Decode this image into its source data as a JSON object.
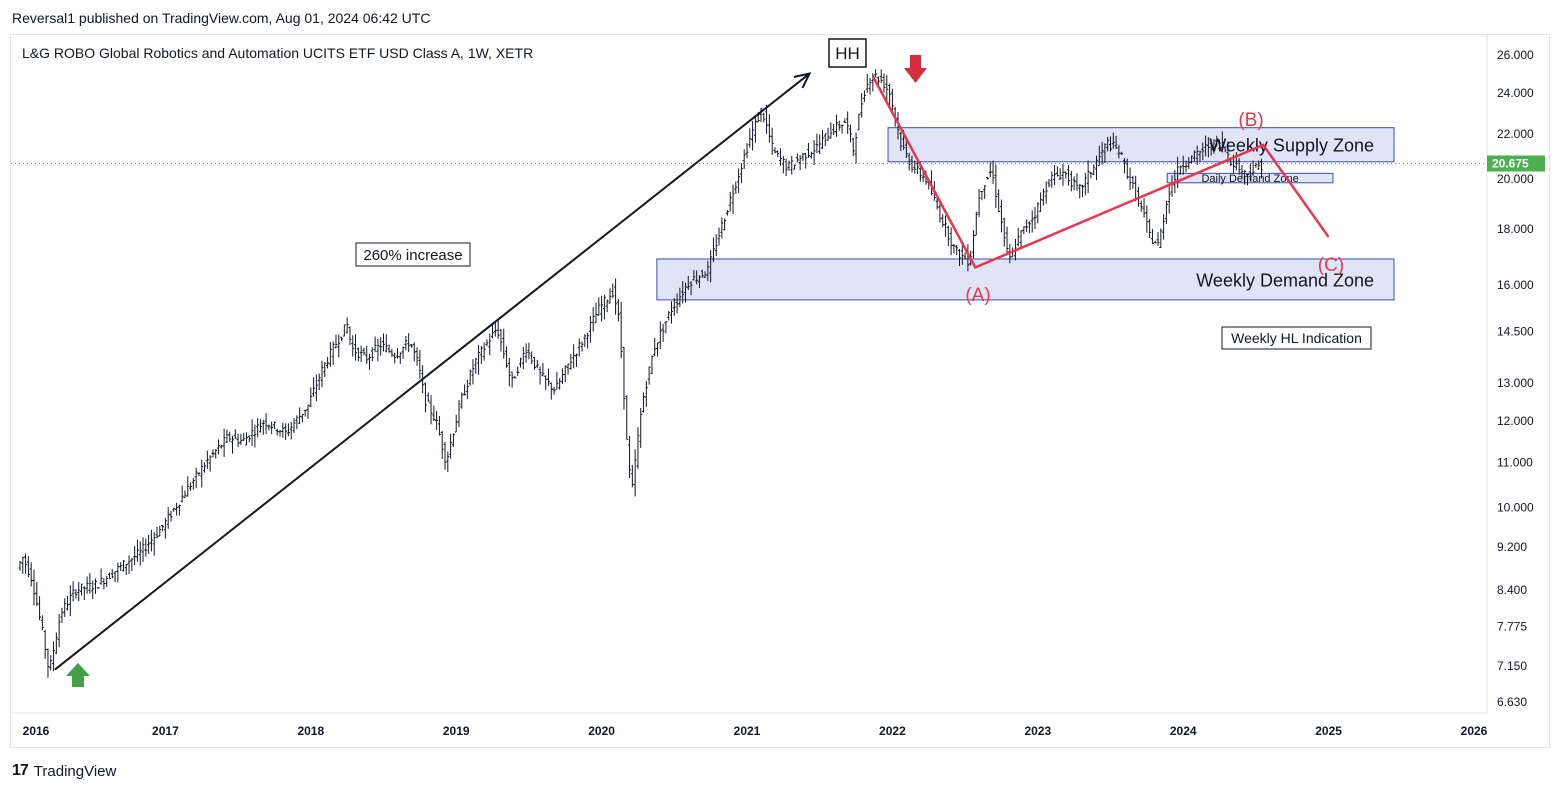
{
  "header": {
    "published": "Reversal1 published on TradingView.com, Aug 01, 2024 06:42 UTC"
  },
  "footer": {
    "brand_mark": "17",
    "brand": "TradingView"
  },
  "chart_data": {
    "type": "candlestick",
    "title": "L&G ROBO Global Robotics and Automation UCITS ETF USD Class A, 1W, XETR",
    "x_ticks": [
      "2016",
      "2017",
      "2018",
      "2019",
      "2020",
      "2021",
      "2022",
      "2023",
      "2024",
      "2025",
      "2026"
    ],
    "y_ticks": [
      "26.000",
      "24.000",
      "22.000",
      "20.000",
      "18.000",
      "16.000",
      "14.500",
      "13.000",
      "12.000",
      "11.000",
      "10.000",
      "9.200",
      "8.400",
      "7.775",
      "7.150",
      "6.630"
    ],
    "y_scale": "log",
    "ylim": [
      6.4,
      26.5
    ],
    "xlim": [
      2016.0,
      2026.0
    ],
    "last_price": "20.675",
    "last_price_value": 20.675,
    "colors": {
      "candle": "#131722",
      "zone_fill": "#d9dff5",
      "zone_border": "#3b4cb8",
      "wave": "#e8364d",
      "up_arrow": "#43a047",
      "down_arrow": "#d32f3a",
      "price_tag": "#4caf50"
    },
    "price_path": [
      [
        2016.0,
        8.8
      ],
      [
        2016.04,
        9.0
      ],
      [
        2016.1,
        8.6
      ],
      [
        2016.18,
        7.6
      ],
      [
        2016.22,
        7.05
      ],
      [
        2016.3,
        8.0
      ],
      [
        2016.4,
        8.4
      ],
      [
        2016.55,
        8.5
      ],
      [
        2016.7,
        8.8
      ],
      [
        2016.85,
        9.1
      ],
      [
        2017.0,
        9.6
      ],
      [
        2017.15,
        10.3
      ],
      [
        2017.3,
        11.0
      ],
      [
        2017.45,
        11.6
      ],
      [
        2017.55,
        11.5
      ],
      [
        2017.7,
        12.0
      ],
      [
        2017.85,
        11.7
      ],
      [
        2018.0,
        12.4
      ],
      [
        2018.1,
        13.4
      ],
      [
        2018.2,
        14.2
      ],
      [
        2018.27,
        14.7
      ],
      [
        2018.3,
        14.0
      ],
      [
        2018.4,
        13.7
      ],
      [
        2018.5,
        14.1
      ],
      [
        2018.6,
        13.8
      ],
      [
        2018.7,
        14.2
      ],
      [
        2018.76,
        13.5
      ],
      [
        2018.8,
        12.6
      ],
      [
        2018.88,
        12.0
      ],
      [
        2018.95,
        11.0
      ],
      [
        2019.05,
        12.5
      ],
      [
        2019.15,
        13.6
      ],
      [
        2019.3,
        14.6
      ],
      [
        2019.4,
        13.0
      ],
      [
        2019.5,
        14.0
      ],
      [
        2019.6,
        13.2
      ],
      [
        2019.7,
        12.8
      ],
      [
        2019.8,
        13.6
      ],
      [
        2019.9,
        14.3
      ],
      [
        2020.0,
        15.2
      ],
      [
        2020.1,
        15.8
      ],
      [
        2020.14,
        14.8
      ],
      [
        2020.2,
        11.0
      ],
      [
        2020.23,
        10.4
      ],
      [
        2020.3,
        12.5
      ],
      [
        2020.38,
        14.0
      ],
      [
        2020.5,
        15.2
      ],
      [
        2020.62,
        16.1
      ],
      [
        2020.75,
        16.5
      ],
      [
        2020.85,
        18.2
      ],
      [
        2020.95,
        20.0
      ],
      [
        2021.05,
        22.0
      ],
      [
        2021.12,
        23.2
      ],
      [
        2021.2,
        21.2
      ],
      [
        2021.3,
        20.5
      ],
      [
        2021.4,
        21.0
      ],
      [
        2021.5,
        21.4
      ],
      [
        2021.6,
        22.2
      ],
      [
        2021.7,
        22.6
      ],
      [
        2021.75,
        21.3
      ],
      [
        2021.82,
        24.0
      ],
      [
        2021.88,
        25.0
      ],
      [
        2021.95,
        24.6
      ],
      [
        2022.0,
        24.0
      ],
      [
        2022.08,
        21.5
      ],
      [
        2022.15,
        20.6
      ],
      [
        2022.25,
        20.0
      ],
      [
        2022.35,
        18.5
      ],
      [
        2022.45,
        17.2
      ],
      [
        2022.55,
        16.8
      ],
      [
        2022.62,
        19.5
      ],
      [
        2022.7,
        20.4
      ],
      [
        2022.75,
        18.8
      ],
      [
        2022.82,
        16.8
      ],
      [
        2022.9,
        17.8
      ],
      [
        2023.0,
        18.6
      ],
      [
        2023.1,
        20.0
      ],
      [
        2023.2,
        20.3
      ],
      [
        2023.3,
        19.5
      ],
      [
        2023.4,
        20.5
      ],
      [
        2023.5,
        21.6
      ],
      [
        2023.58,
        21.2
      ],
      [
        2023.65,
        20.0
      ],
      [
        2023.72,
        19.0
      ],
      [
        2023.8,
        17.6
      ],
      [
        2023.85,
        17.4
      ],
      [
        2023.92,
        19.5
      ],
      [
        2024.0,
        20.6
      ],
      [
        2024.1,
        21.0
      ],
      [
        2024.2,
        21.5
      ],
      [
        2024.28,
        21.6
      ],
      [
        2024.35,
        20.8
      ],
      [
        2024.45,
        20.2
      ],
      [
        2024.55,
        20.6
      ]
    ],
    "zones": [
      {
        "name": "weekly-supply-zone",
        "label": "Weekly Supply Zone",
        "x0": 2021.97,
        "x1": 2025.45,
        "y0": 20.75,
        "y1": 22.3
      },
      {
        "name": "weekly-demand-zone",
        "label": "Weekly Demand Zone",
        "x0": 2020.38,
        "x1": 2025.45,
        "y0": 15.5,
        "y1": 16.9
      },
      {
        "name": "daily-demand-zone",
        "label": "Daily Demand Zone",
        "x0": 2023.89,
        "x1": 2025.03,
        "y0": 19.85,
        "y1": 20.25
      }
    ],
    "trend_line": {
      "from": [
        2016.24,
        7.1
      ],
      "to": [
        2021.43,
        25.0
      ]
    },
    "wave_path": [
      [
        2021.87,
        24.8
      ],
      [
        2022.57,
        16.6
      ],
      [
        2024.55,
        21.5
      ],
      [
        2025.0,
        17.7
      ]
    ],
    "annotations": {
      "hh": "HH",
      "increase": "260% increase",
      "wave_a": "(A)",
      "wave_b": "(B)",
      "wave_c": "(C)",
      "hl_indication": "Weekly HL Indication"
    }
  }
}
